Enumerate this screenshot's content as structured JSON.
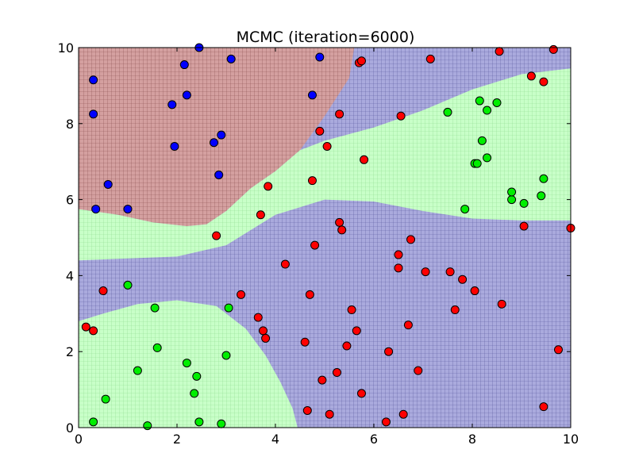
{
  "chart_data": {
    "type": "scatter",
    "title": "MCMC (iteration=6000)",
    "xlabel": "",
    "ylabel": "",
    "xlim": [
      0,
      10
    ],
    "ylim": [
      0,
      10
    ],
    "x_ticks": [
      0,
      2,
      4,
      6,
      8,
      10
    ],
    "y_ticks": [
      0,
      2,
      4,
      6,
      8,
      10
    ],
    "grid": false,
    "region_colors": {
      "blue": "#aaaadd",
      "red": "#d4a0a0",
      "green": "#c8ffc8"
    },
    "region_grid_color": {
      "blue": "#5a5aa0",
      "red": "#8a5050",
      "green": "#8fdc8f"
    },
    "classes": {
      "blue": {
        "color": "#0000ff",
        "points": [
          [
            0.3,
            9.15
          ],
          [
            0.3,
            8.25
          ],
          [
            0.35,
            5.75
          ],
          [
            0.6,
            6.4
          ],
          [
            1.0,
            5.75
          ],
          [
            1.9,
            8.5
          ],
          [
            1.95,
            7.4
          ],
          [
            2.15,
            9.55
          ],
          [
            2.2,
            8.75
          ],
          [
            2.45,
            10.0
          ],
          [
            2.75,
            7.5
          ],
          [
            2.85,
            6.65
          ],
          [
            2.9,
            7.7
          ],
          [
            3.1,
            9.7
          ],
          [
            4.75,
            8.75
          ],
          [
            4.9,
            9.75
          ]
        ]
      },
      "red": {
        "color": "#ff0000",
        "points": [
          [
            0.15,
            2.65
          ],
          [
            0.3,
            2.55
          ],
          [
            0.5,
            3.6
          ],
          [
            2.8,
            5.05
          ],
          [
            3.3,
            3.5
          ],
          [
            3.65,
            2.9
          ],
          [
            3.7,
            5.6
          ],
          [
            3.75,
            2.55
          ],
          [
            3.8,
            2.35
          ],
          [
            3.85,
            6.35
          ],
          [
            4.2,
            4.3
          ],
          [
            4.6,
            2.25
          ],
          [
            4.65,
            0.45
          ],
          [
            4.7,
            3.5
          ],
          [
            4.75,
            6.5
          ],
          [
            4.8,
            4.8
          ],
          [
            4.9,
            7.8
          ],
          [
            4.95,
            1.25
          ],
          [
            5.05,
            7.4
          ],
          [
            5.1,
            0.35
          ],
          [
            5.25,
            1.45
          ],
          [
            5.3,
            5.4
          ],
          [
            5.3,
            8.25
          ],
          [
            5.35,
            5.2
          ],
          [
            5.45,
            2.15
          ],
          [
            5.55,
            3.1
          ],
          [
            5.65,
            2.55
          ],
          [
            5.7,
            9.6
          ],
          [
            5.75,
            9.65
          ],
          [
            5.75,
            0.9
          ],
          [
            5.8,
            7.05
          ],
          [
            6.25,
            0.15
          ],
          [
            6.3,
            2.0
          ],
          [
            6.5,
            4.55
          ],
          [
            6.5,
            4.2
          ],
          [
            6.55,
            8.2
          ],
          [
            6.6,
            0.35
          ],
          [
            6.7,
            2.7
          ],
          [
            6.75,
            4.95
          ],
          [
            6.9,
            1.5
          ],
          [
            7.05,
            4.1
          ],
          [
            7.15,
            9.7
          ],
          [
            7.55,
            4.1
          ],
          [
            7.65,
            3.1
          ],
          [
            7.8,
            3.9
          ],
          [
            8.05,
            3.6
          ],
          [
            8.55,
            9.9
          ],
          [
            8.6,
            3.25
          ],
          [
            9.05,
            5.3
          ],
          [
            9.2,
            9.25
          ],
          [
            9.45,
            9.1
          ],
          [
            9.45,
            0.55
          ],
          [
            9.65,
            9.95
          ],
          [
            9.75,
            2.05
          ],
          [
            10.0,
            5.25
          ]
        ]
      },
      "green": {
        "color": "#00ee00",
        "points": [
          [
            0.3,
            0.15
          ],
          [
            0.55,
            0.75
          ],
          [
            1.0,
            3.75
          ],
          [
            1.2,
            1.5
          ],
          [
            1.4,
            0.05
          ],
          [
            1.55,
            3.15
          ],
          [
            1.6,
            2.1
          ],
          [
            2.2,
            1.7
          ],
          [
            2.35,
            0.9
          ],
          [
            2.4,
            1.35
          ],
          [
            2.45,
            0.15
          ],
          [
            2.9,
            0.1
          ],
          [
            3.0,
            1.9
          ],
          [
            3.05,
            3.15
          ],
          [
            7.5,
            8.3
          ],
          [
            7.85,
            5.75
          ],
          [
            8.05,
            6.95
          ],
          [
            8.1,
            6.95
          ],
          [
            8.15,
            8.6
          ],
          [
            8.2,
            7.55
          ],
          [
            8.3,
            8.35
          ],
          [
            8.3,
            7.1
          ],
          [
            8.5,
            8.55
          ],
          [
            8.8,
            6.0
          ],
          [
            8.8,
            6.2
          ],
          [
            9.05,
            5.9
          ],
          [
            9.4,
            6.1
          ],
          [
            9.45,
            6.55
          ]
        ]
      }
    },
    "regions": {
      "red": [
        [
          0,
          5.75
        ],
        [
          0.8,
          5.6
        ],
        [
          1.5,
          5.4
        ],
        [
          2.2,
          5.3
        ],
        [
          2.6,
          5.35
        ],
        [
          3.0,
          5.7
        ],
        [
          3.5,
          6.3
        ],
        [
          4.0,
          6.75
        ],
        [
          4.5,
          7.3
        ],
        [
          5.0,
          8.2
        ],
        [
          5.5,
          9.2
        ],
        [
          5.6,
          10
        ],
        [
          0,
          10
        ]
      ],
      "green_upper": [
        [
          0,
          4.4
        ],
        [
          1.0,
          4.45
        ],
        [
          2.0,
          4.5
        ],
        [
          3.0,
          4.8
        ],
        [
          4.0,
          5.6
        ],
        [
          5.0,
          6.0
        ],
        [
          6.0,
          5.95
        ],
        [
          7.0,
          5.7
        ],
        [
          8.0,
          5.5
        ],
        [
          9.0,
          5.45
        ],
        [
          10,
          5.45
        ],
        [
          10,
          9.45
        ],
        [
          9.0,
          9.3
        ],
        [
          8.0,
          8.9
        ],
        [
          7.0,
          8.35
        ],
        [
          6.0,
          7.9
        ],
        [
          5.0,
          7.55
        ],
        [
          4.5,
          7.3
        ],
        [
          4.0,
          6.75
        ],
        [
          3.5,
          6.3
        ],
        [
          3.0,
          5.7
        ],
        [
          2.6,
          5.35
        ],
        [
          2.2,
          5.3
        ],
        [
          1.5,
          5.4
        ],
        [
          0.8,
          5.6
        ],
        [
          0,
          5.75
        ]
      ],
      "green_lower": [
        [
          0,
          2.8
        ],
        [
          0.5,
          3.0
        ],
        [
          1.2,
          3.25
        ],
        [
          2.0,
          3.35
        ],
        [
          2.8,
          3.2
        ],
        [
          3.4,
          2.6
        ],
        [
          3.8,
          1.9
        ],
        [
          4.1,
          1.2
        ],
        [
          4.35,
          0.5
        ],
        [
          4.45,
          0
        ],
        [
          0,
          0
        ]
      ]
    }
  }
}
